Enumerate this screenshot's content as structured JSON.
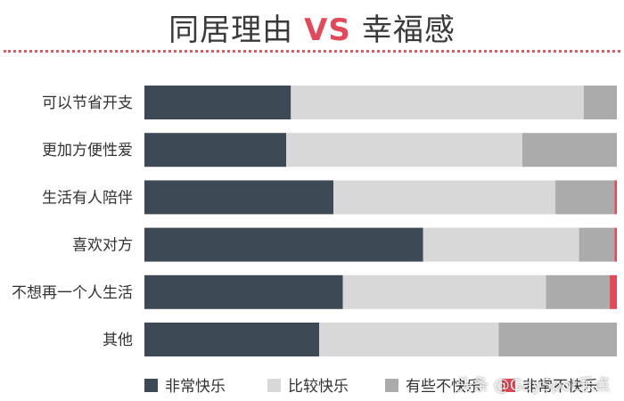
{
  "chart_data": {
    "type": "bar",
    "orientation": "horizontal",
    "stacked": true,
    "normalized": true,
    "title_parts": {
      "left": "同居理由",
      "vs": "VS",
      "right": "幸福感"
    },
    "categories": [
      "可以节省开支",
      "更加方便性爱",
      "生活有人陪伴",
      "喜欢对方",
      "不想再一个人生活",
      "其他"
    ],
    "series": [
      {
        "name": "非常快乐",
        "color": "#3d4a56",
        "values": [
          31,
          30,
          40,
          59,
          42,
          37
        ]
      },
      {
        "name": "比较快乐",
        "color": "#d9d8d9",
        "values": [
          62,
          50,
          47,
          33,
          43,
          38
        ]
      },
      {
        "name": "有些不快乐",
        "color": "#ababab",
        "values": [
          7,
          20,
          12.5,
          7.5,
          13.5,
          25
        ]
      },
      {
        "name": "非常不快乐",
        "color": "#e04a5a",
        "values": [
          0,
          0,
          0.5,
          0.5,
          1.5,
          0
        ]
      }
    ],
    "xlim": [
      0,
      100
    ],
    "grid": false,
    "legend": "bottom"
  },
  "watermark": "头条 @GaySpot乐点"
}
